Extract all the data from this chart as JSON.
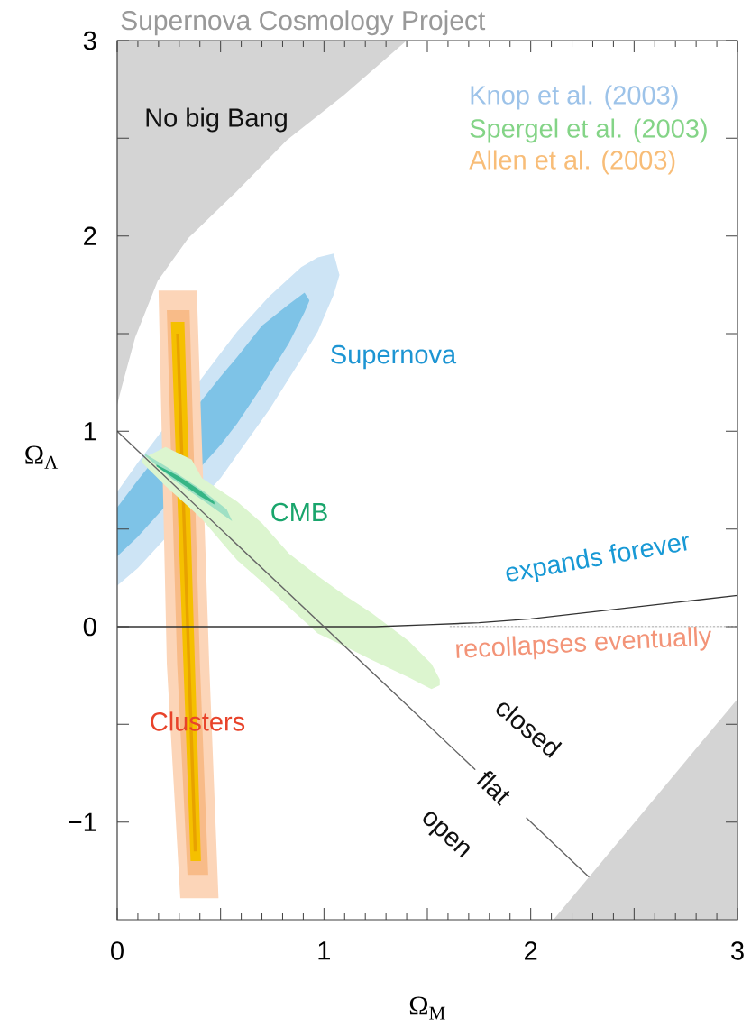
{
  "chart_data": {
    "type": "area",
    "title": "Supernova Cosmology Project",
    "xlabel": "Ω$_{M}$",
    "ylabel": "Ω$_{Λ}$",
    "xlim": [
      0,
      3
    ],
    "ylim": [
      -1.5,
      3
    ],
    "xticks": [
      0,
      {
        "value": 0.5,
        "label": null
      },
      1,
      {
        "value": 1.5,
        "label": null
      },
      2,
      {
        "value": 2.5,
        "label": null
      },
      3
    ],
    "yticks": [
      {
        "value": -1,
        "label": "−1"
      },
      {
        "value": -0.5,
        "label": null
      },
      0,
      {
        "value": 0.5,
        "label": null
      },
      1,
      {
        "value": 1.5,
        "label": null
      },
      2,
      {
        "value": 2.5,
        "label": null
      },
      3
    ],
    "series": [
      {
        "color": "#d4d4d4",
        "x": [
          0,
          0.02,
          0.087,
          0.196,
          0.345,
          0.58,
          0.82,
          1.095,
          1.4
        ],
        "values": [
          null,
          null,
          null,
          null,
          null,
          null,
          null,
          null,
          null
        ],
        "lower": [
          1.135,
          1.22,
          1.48,
          1.77,
          1.99,
          2.23,
          2.49,
          2.72,
          3.0
        ],
        "upper": [
          3,
          3,
          3,
          3,
          3,
          3,
          3,
          3,
          3
        ]
      },
      {
        "color": "#d4d4d4",
        "x": [
          2.11,
          3
        ],
        "values": [
          null,
          null
        ],
        "lower": [
          -1.5,
          -1.5
        ],
        "upper": [
          -1.5,
          -0.37
        ]
      },
      {
        "color": "#cde4f5",
        "x": [
          0,
          0.1,
          0.5,
          0.58,
          0.735,
          0.89,
          0.97,
          1.047,
          1.075
        ],
        "values": [
          null,
          null,
          null,
          null,
          null,
          null,
          null,
          null,
          null
        ],
        "lower": [
          0.21,
          0.3,
          0.76,
          0.88,
          1.11,
          1.37,
          1.51,
          1.7,
          1.8
        ],
        "upper": [
          0.69,
          0.84,
          1.4,
          1.51,
          1.69,
          1.84,
          1.89,
          1.91,
          1.8
        ]
      },
      {
        "color": "#7ec3e7",
        "x": [
          0,
          0.1,
          0.5,
          0.58,
          0.7,
          0.83,
          0.906,
          0.93
        ],
        "values": [
          null,
          null,
          null,
          null,
          null,
          null,
          null,
          null
        ],
        "lower": [
          0.36,
          0.46,
          0.93,
          1.04,
          1.23,
          1.45,
          1.61,
          1.67
        ],
        "upper": [
          0.61,
          0.75,
          1.28,
          1.38,
          1.54,
          1.65,
          1.71,
          1.67
        ]
      },
      {
        "color": "#fcd5b8",
        "x": [
          0.2,
          0.24,
          0.305,
          0.385,
          0.445,
          0.49
        ],
        "values": [
          null,
          null,
          null,
          null,
          null,
          null
        ],
        "lower": [
          1.72,
          -0.19,
          -1.39,
          -1.39,
          -1.39,
          -1.39
        ],
        "upper": [
          1.72,
          1.72,
          1.72,
          1.72,
          -0.19,
          -1.39
        ]
      },
      {
        "color": "#f8bb88",
        "x": [
          0.24,
          0.29,
          0.34,
          0.35,
          0.4,
          0.44
        ],
        "values": [
          null,
          null,
          null,
          null,
          null,
          null
        ],
        "lower": [
          1.62,
          -0.19,
          -1.27,
          -1.27,
          -1.27,
          -1.27
        ],
        "upper": [
          1.62,
          1.62,
          1.62,
          1.62,
          -0.19,
          -1.27
        ]
      },
      {
        "color": "#f5c000",
        "x": [
          0.26,
          0.325,
          0.355,
          0.405
        ],
        "values": [
          null,
          null,
          null,
          null
        ],
        "lower": [
          1.56,
          -0.33,
          -1.2,
          -1.2
        ],
        "upper": [
          1.56,
          1.56,
          0.525,
          -1.2
        ]
      },
      {
        "color": "#e8a200",
        "x": [
          0.285,
          0.3,
          0.37,
          0.385
        ],
        "values": [
          null,
          null,
          null,
          null
        ],
        "lower": [
          1.5,
          1.03,
          -1.15,
          -1.15
        ],
        "upper": [
          1.5,
          1.5,
          -0.68,
          -1.15
        ]
      },
      {
        "color": "#dcf5cf",
        "x": [
          0.12,
          0.234,
          0.36,
          0.41,
          0.58,
          0.7,
          0.83,
          0.97,
          1.1,
          1.23,
          1.41,
          1.52,
          1.56
        ],
        "values": [
          null,
          null,
          null,
          null,
          null,
          null,
          null,
          null,
          null,
          null,
          null,
          null,
          null
        ],
        "lower": [
          0.84,
          0.72,
          0.6,
          0.55,
          0.34,
          0.23,
          0.1,
          -0.035,
          -0.1,
          -0.17,
          -0.26,
          -0.32,
          -0.3
        ],
        "upper": [
          0.86,
          0.92,
          0.855,
          0.76,
          0.64,
          0.53,
          0.375,
          0.26,
          0.16,
          0.07,
          -0.074,
          -0.19,
          -0.27
        ]
      },
      {
        "color": "#9fe0c4",
        "x": [
          0.135,
          0.267,
          0.423,
          0.53,
          0.556
        ],
        "values": [
          null,
          null,
          null,
          null,
          null
        ],
        "lower": [
          0.875,
          0.755,
          0.64,
          0.56,
          0.54
        ],
        "upper": [
          0.885,
          0.8,
          0.69,
          0.6,
          0.54
        ]
      },
      {
        "color": "#35b585",
        "x": [
          0.19,
          0.3,
          0.4,
          0.47
        ],
        "values": [
          null,
          null,
          null,
          null
        ],
        "lower": [
          0.82,
          0.742,
          0.668,
          0.625
        ],
        "upper": [
          0.83,
          0.768,
          0.698,
          0.638
        ]
      },
      {
        "type": "line",
        "color": "#333333",
        "x": [
          0,
          1,
          1.25,
          1.5,
          1.75,
          2,
          2.25,
          2.5,
          2.75,
          3
        ],
        "values": [
          0,
          0,
          0,
          0.01,
          0.02,
          0.04,
          0.07,
          0.1,
          0.13,
          0.16
        ]
      },
      {
        "type": "line",
        "color": "#888888",
        "line_style": "dotted",
        "x": [
          1.61,
          3
        ],
        "values": [
          0,
          0
        ]
      },
      {
        "type": "line",
        "color": "#666666",
        "x": [
          0,
          1.73,
          1.86,
          1.98,
          2.28
        ],
        "values": [
          1,
          -0.73,
          null,
          -0.98,
          -1.28
        ]
      }
    ],
    "annotations": [
      "Knop et al. (2003)",
      "Spergel et al. (2003)",
      "Allen et al. (2003)",
      "No big Bang",
      "Supernova",
      "CMB",
      "Clusters",
      "expands forever",
      "recollapses eventually",
      "closed",
      "flat",
      "open"
    ]
  }
}
